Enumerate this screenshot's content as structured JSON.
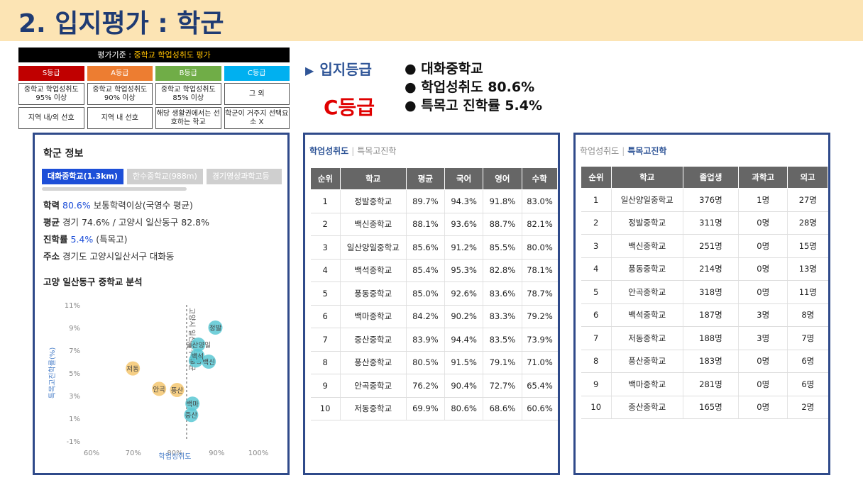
{
  "title": "2. 입지평가 : 학군",
  "criteria": {
    "header_prefix": "평가기준 : ",
    "header_highlight": "중학교 학업성취도 평가",
    "grades": [
      {
        "label": "S등급",
        "row1": "중학교 학업성취도 95% 이상",
        "row2": "지역 내/외 선호"
      },
      {
        "label": "A등급",
        "row1": "중학교 학업성취도 90% 이상",
        "row2": "지역 내 선호"
      },
      {
        "label": "B등급",
        "row1": "중학교 학업성취도 85% 이상",
        "row2": "해당 생활권에서는 선호하는 학교"
      },
      {
        "label": "C등급",
        "row1": "그 외",
        "row2": "학군이 거주지 선택요소 X"
      }
    ]
  },
  "grade_label": "입지등급",
  "grade_value": "C등급",
  "bullets": [
    "● 대화중학교",
    "● 학업성취도 80.6%",
    "● 특목고 진학률 5.4%"
  ],
  "school_info": {
    "title": "학군 정보",
    "tabs": [
      "대화중학교(1.3km)",
      "한수중학교(988m)",
      "경기영상과학고등"
    ],
    "lines": [
      {
        "key": "학력",
        "value": "80.6%",
        "rest": " 보통학력이상(국영수 평균)"
      },
      {
        "key": "평균",
        "value": "",
        "rest": " 경기 74.6% / 고양시 일산동구 82.8%"
      },
      {
        "key": "진학률",
        "value": "5.4%",
        "rest": " (특목고)"
      },
      {
        "key": "주소",
        "value": "",
        "rest": " 경기도 고양시일산서구 대화동"
      }
    ],
    "chart_title": "고양 일산동구 중학교 분석"
  },
  "chart_data": {
    "type": "scatter",
    "xlabel": "학업성취도",
    "ylabel": "특목고진학률(%)",
    "x_ticks": [
      "60%",
      "70%",
      "80%",
      "90%",
      "100%"
    ],
    "y_ticks": [
      "11%",
      "9%",
      "7%",
      "5%",
      "3%",
      "1%",
      "-1%"
    ],
    "xlim": [
      60,
      100
    ],
    "ylim": [
      -1,
      11
    ],
    "ref_line_x": 82.8,
    "ref_line_label": "고양시 일산동구 평균",
    "colors": {
      "above": "#5bc8d4",
      "below": "#f4c770"
    },
    "points": [
      {
        "label": "정발",
        "x": 89.7,
        "y": 9.0
      },
      {
        "label": "일산양일",
        "x": 85.6,
        "y": 7.5
      },
      {
        "label": "백신",
        "x": 88.1,
        "y": 6.0
      },
      {
        "label": "풍동",
        "x": 85.0,
        "y": 6.1
      },
      {
        "label": "백석",
        "x": 85.4,
        "y": 6.5
      },
      {
        "label": "백마",
        "x": 84.2,
        "y": 2.3
      },
      {
        "label": "중산",
        "x": 83.9,
        "y": 1.3
      },
      {
        "label": "저동",
        "x": 69.9,
        "y": 5.4
      },
      {
        "label": "안곡",
        "x": 76.2,
        "y": 3.6
      },
      {
        "label": "풍산",
        "x": 80.5,
        "y": 3.5
      }
    ]
  },
  "table1": {
    "tab_active": "학업성취도",
    "tab_other": "특목고진학",
    "headers": [
      "순위",
      "학교",
      "평균",
      "국어",
      "영어",
      "수학"
    ],
    "rows": [
      [
        "1",
        "정발중학교",
        "89.7%",
        "94.3%",
        "91.8%",
        "83.0%"
      ],
      [
        "2",
        "백신중학교",
        "88.1%",
        "93.6%",
        "88.7%",
        "82.1%"
      ],
      [
        "3",
        "일산양일중학교",
        "85.6%",
        "91.2%",
        "85.5%",
        "80.0%"
      ],
      [
        "4",
        "백석중학교",
        "85.4%",
        "95.3%",
        "82.8%",
        "78.1%"
      ],
      [
        "5",
        "풍동중학교",
        "85.0%",
        "92.6%",
        "83.6%",
        "78.7%"
      ],
      [
        "6",
        "백마중학교",
        "84.2%",
        "90.2%",
        "83.3%",
        "79.2%"
      ],
      [
        "7",
        "중산중학교",
        "83.9%",
        "94.4%",
        "83.5%",
        "73.9%"
      ],
      [
        "8",
        "풍산중학교",
        "80.5%",
        "91.5%",
        "79.1%",
        "71.0%"
      ],
      [
        "9",
        "안곡중학교",
        "76.2%",
        "90.4%",
        "72.7%",
        "65.4%"
      ],
      [
        "10",
        "저동중학교",
        "69.9%",
        "80.6%",
        "68.6%",
        "60.6%"
      ]
    ]
  },
  "table2": {
    "tab_other": "학업성취도",
    "tab_active": "특목고진학",
    "headers": [
      "순위",
      "학교",
      "졸업생",
      "과학고",
      "외고"
    ],
    "rows": [
      [
        "1",
        "일산양일중학교",
        "376명",
        "1명",
        "27명"
      ],
      [
        "2",
        "정발중학교",
        "311명",
        "0명",
        "28명"
      ],
      [
        "3",
        "백신중학교",
        "251명",
        "0명",
        "15명"
      ],
      [
        "4",
        "풍동중학교",
        "214명",
        "0명",
        "13명"
      ],
      [
        "5",
        "안곡중학교",
        "318명",
        "0명",
        "11명"
      ],
      [
        "6",
        "백석중학교",
        "187명",
        "3명",
        "8명"
      ],
      [
        "7",
        "저동중학교",
        "188명",
        "3명",
        "7명"
      ],
      [
        "8",
        "풍산중학교",
        "183명",
        "0명",
        "6명"
      ],
      [
        "9",
        "백마중학교",
        "281명",
        "0명",
        "6명"
      ],
      [
        "10",
        "중산중학교",
        "165명",
        "0명",
        "2명"
      ]
    ]
  }
}
